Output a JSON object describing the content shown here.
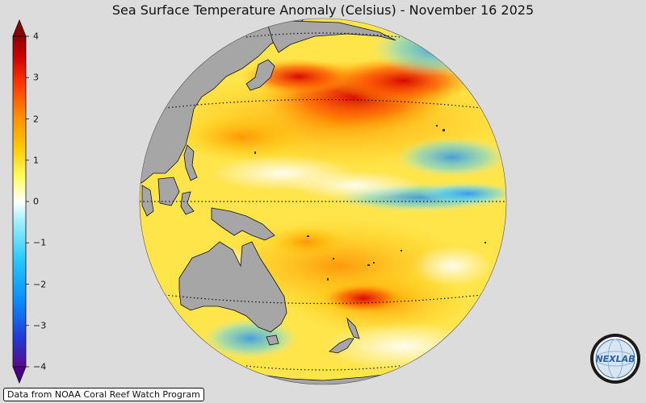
{
  "title": "Sea Surface Temperature Anomaly (Celsius) - November 16 2025",
  "colorbar": {
    "ticks": [
      "4",
      "3",
      "2",
      "1",
      "0",
      "−1",
      "−2",
      "−3",
      "−4"
    ],
    "colors": [
      "#5a0a8c",
      "#1f3cd6",
      "#0a8cff",
      "#22c8ff",
      "#9ff0ff",
      "#ffffff",
      "#ffff66",
      "#ffcc00",
      "#ff8c00",
      "#ff3300",
      "#cc0000",
      "#8b0000"
    ]
  },
  "map": {
    "land_color": "#a6a6a6",
    "warm_colors": [
      "#ffd700",
      "#ffae00",
      "#ff8000",
      "#ff3b00",
      "#d60000"
    ],
    "cool_colors": [
      "#aef4ff",
      "#4fd3ff",
      "#1a8cff"
    ]
  },
  "source": "Data from NOAA Coral Reef Watch Program",
  "logo": {
    "text": "NEXLAB",
    "icon": "nexlab-logo-icon"
  }
}
